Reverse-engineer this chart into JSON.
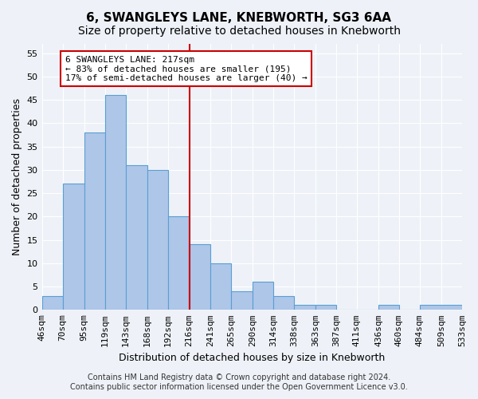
{
  "title": "6, SWANGLEYS LANE, KNEBWORTH, SG3 6AA",
  "subtitle": "Size of property relative to detached houses in Knebworth",
  "xlabel": "Distribution of detached houses by size in Knebworth",
  "ylabel": "Number of detached properties",
  "bar_values": [
    3,
    27,
    38,
    46,
    31,
    30,
    20,
    14,
    10,
    4,
    6,
    3,
    1,
    1,
    0,
    0,
    1,
    0,
    1
  ],
  "bin_edges": [
    46,
    70,
    95,
    119,
    143,
    168,
    192,
    216,
    241,
    265,
    290,
    314,
    338,
    363,
    387,
    411,
    436,
    460,
    484,
    533
  ],
  "bin_labels": [
    "46sqm",
    "70sqm",
    "95sqm",
    "119sqm",
    "143sqm",
    "168sqm",
    "192sqm",
    "216sqm",
    "241sqm",
    "265sqm",
    "290sqm",
    "314sqm",
    "338sqm",
    "363sqm",
    "387sqm",
    "411sqm",
    "436sqm",
    "460sqm",
    "484sqm",
    "509sqm",
    "533sqm"
  ],
  "xtick_positions": [
    46,
    70,
    95,
    119,
    143,
    168,
    192,
    216,
    241,
    265,
    290,
    314,
    338,
    363,
    387,
    411,
    436,
    460,
    484,
    509,
    533
  ],
  "bar_color": "#aec6e8",
  "bar_edge_color": "#5a9fd4",
  "vline_x": 217,
  "vline_color": "#cc0000",
  "ylim": [
    0,
    57
  ],
  "yticks": [
    0,
    5,
    10,
    15,
    20,
    25,
    30,
    35,
    40,
    45,
    50,
    55
  ],
  "annotation_text": "6 SWANGLEYS LANE: 217sqm\n← 83% of detached houses are smaller (195)\n17% of semi-detached houses are larger (40) →",
  "annotation_box_color": "#ffffff",
  "annotation_border_color": "#cc0000",
  "footer_line1": "Contains HM Land Registry data © Crown copyright and database right 2024.",
  "footer_line2": "Contains public sector information licensed under the Open Government Licence v3.0.",
  "background_color": "#eef2f8",
  "grid_color": "#ffffff",
  "title_fontsize": 11,
  "subtitle_fontsize": 10,
  "axis_label_fontsize": 9,
  "tick_fontsize": 8,
  "annotation_fontsize": 8,
  "footer_fontsize": 7
}
